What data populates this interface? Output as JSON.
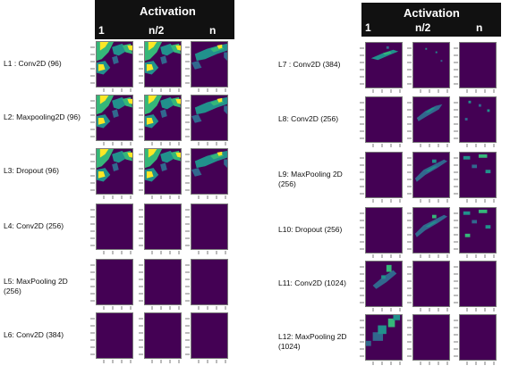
{
  "headers": [
    {
      "title": "Activation",
      "columns": [
        "1",
        "n/2",
        "n"
      ]
    },
    {
      "title": "Activation",
      "columns": [
        "1",
        "n/2",
        "n"
      ]
    }
  ],
  "layers": [
    {
      "label": "L1 : Conv2D (96)",
      "pattern": [
        "map",
        "map",
        "mapN"
      ]
    },
    {
      "label": "L2: Maxpooling2D (96)",
      "pattern": [
        "map",
        "map",
        "mapN"
      ]
    },
    {
      "label": "L3: Dropout (96)",
      "pattern": [
        "map",
        "map",
        "mapN"
      ]
    },
    {
      "label": "L4: Conv2D  (256)",
      "pattern": [
        "empty",
        "empty",
        "empty"
      ]
    },
    {
      "label": "L5: MaxPooling 2D (256)",
      "pattern": [
        "empty",
        "empty",
        "empty"
      ]
    },
    {
      "label": "L6: Conv2D (384)",
      "pattern": [
        "empty",
        "empty",
        "empty"
      ]
    },
    {
      "label": "L7 : Conv2D (384)",
      "pattern": [
        "streak",
        "dots",
        "empty"
      ]
    },
    {
      "label": "L8: Conv2D (256)",
      "pattern": [
        "empty",
        "diag",
        "sparse"
      ]
    },
    {
      "label": "L9: MaxPooling 2D (256)",
      "pattern": [
        "empty",
        "diagB",
        "blocks"
      ]
    },
    {
      "label": "L10: Dropout  (256)",
      "pattern": [
        "empty",
        "diagC",
        "blocksB"
      ]
    },
    {
      "label": "L11: Conv2D (1024)",
      "pattern": [
        "cluster",
        "empty",
        "empty"
      ]
    },
    {
      "label": "L12: MaxPooling 2D (1024)",
      "pattern": [
        "pixel",
        "empty",
        "empty"
      ]
    }
  ],
  "colors": {
    "background": "#440154",
    "dark_blue": "#31688e",
    "teal": "#21918c",
    "green": "#35b779",
    "yellow": "#fde725",
    "header_bg": "#111111",
    "header_text": "#ffffff"
  }
}
